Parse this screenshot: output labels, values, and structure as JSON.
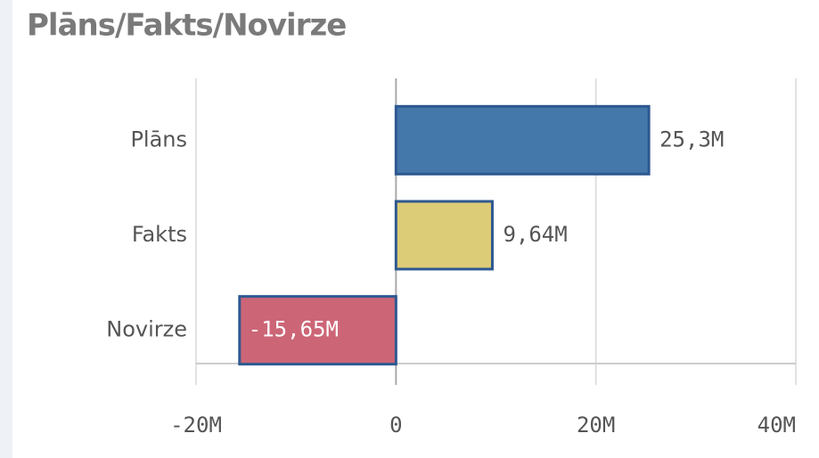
{
  "chart_data": {
    "type": "bar",
    "orientation": "horizontal",
    "title": "Plāns/Fakts/Novirze",
    "categories": [
      "Plāns",
      "Fakts",
      "Novirze"
    ],
    "values": [
      25300000,
      9640000,
      -15650000
    ],
    "value_labels": [
      "25,3M",
      "9,64M",
      "-15,65M"
    ],
    "colors": [
      "#4477aa",
      "#ddcc77",
      "#cc6677"
    ],
    "xlim": [
      -20000000,
      40000000
    ],
    "xticks": [
      {
        "value": -20000000,
        "label": "-20M"
      },
      0,
      {
        "value": 20000000,
        "label": "20M"
      },
      {
        "value": 40000000,
        "label": "40M"
      }
    ],
    "grid": true
  }
}
